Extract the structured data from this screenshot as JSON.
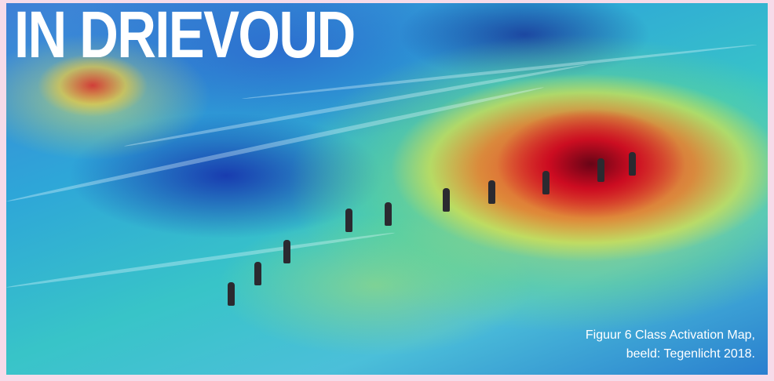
{
  "title": "IN DRIEVOUD",
  "caption": {
    "lines": [
      "Figuur 6 Class Activation Map,",
      "beeld: Tegenlicht 2018."
    ]
  }
}
